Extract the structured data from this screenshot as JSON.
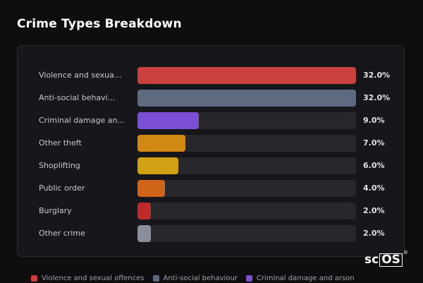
{
  "header": {
    "title": "Crime Types Breakdown"
  },
  "chart_data": {
    "type": "bar",
    "orientation": "horizontal",
    "title": "Crime Types Breakdown",
    "xlim": [
      0,
      32
    ],
    "categories": [
      "Violence and sexua...",
      "Anti-social behavi...",
      "Criminal damage an...",
      "Other theft",
      "Shoplifting",
      "Public order",
      "Burglary",
      "Other crime"
    ],
    "values": [
      32.0,
      32.0,
      9.0,
      7.0,
      6.0,
      4.0,
      2.0,
      2.0
    ],
    "value_labels": [
      "32.0%",
      "32.0%",
      "9.0%",
      "7.0%",
      "6.0%",
      "4.0%",
      "2.0%",
      "2.0%"
    ],
    "colors": [
      "#c9403f",
      "#5e6a80",
      "#7b4ed6",
      "#d08a13",
      "#d1a013",
      "#d0651a",
      "#c02a2a",
      "#8a909b"
    ]
  },
  "legend": {
    "items": [
      {
        "label": "Violence and sexual offences",
        "color": "#c9403f"
      },
      {
        "label": "Anti-social behaviour",
        "color": "#5e6a80"
      },
      {
        "label": "Criminal damage and arson",
        "color": "#7b4ed6"
      }
    ]
  },
  "branding": {
    "logo_prefix": "sc",
    "logo_boxed": "OS",
    "logo_mark": "®"
  }
}
